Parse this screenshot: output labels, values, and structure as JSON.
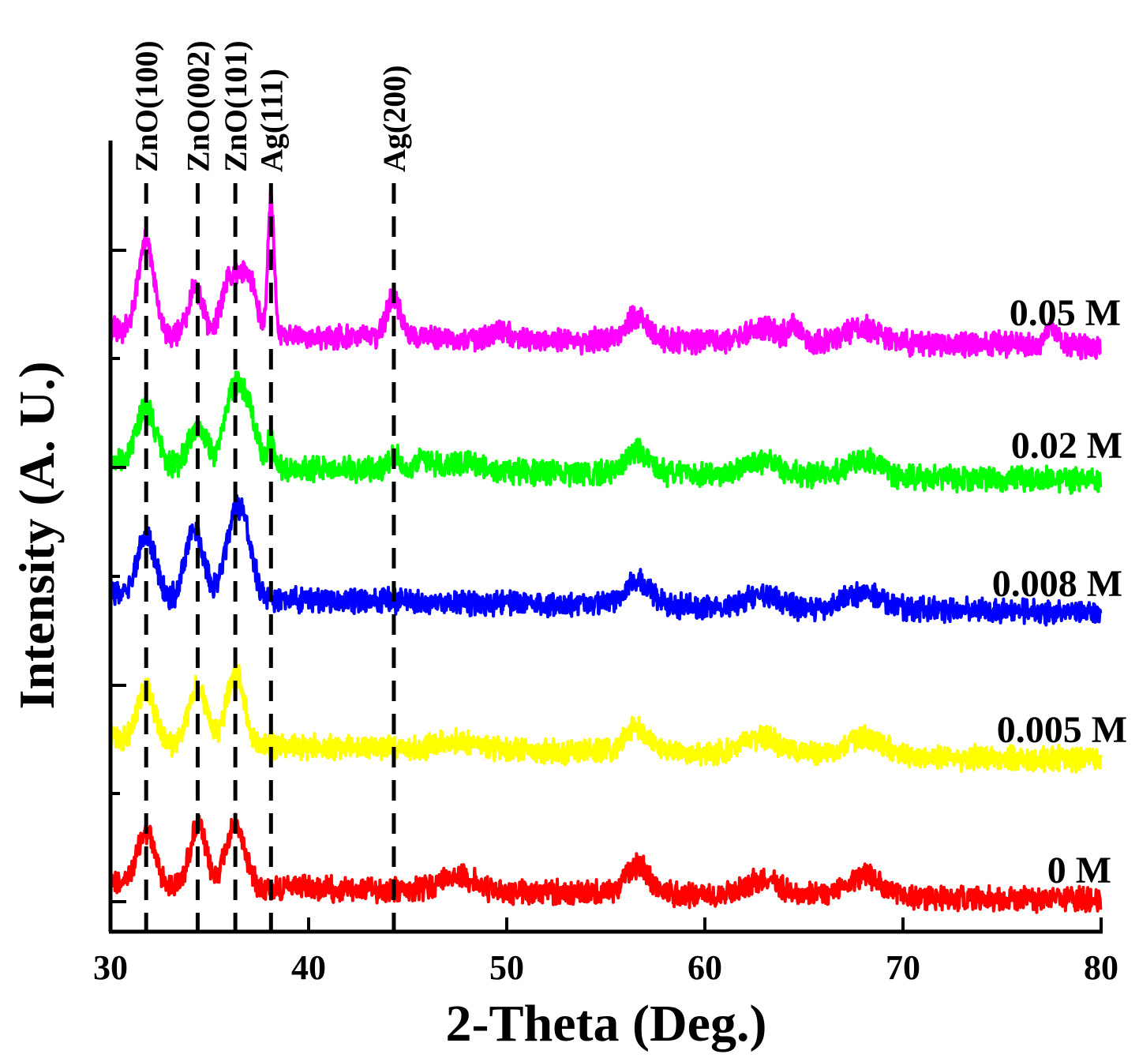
{
  "chart_data": {
    "type": "line",
    "title": "",
    "xlabel": "2-Theta (Deg.)",
    "ylabel": "Intensity (A. U.)",
    "xlim": [
      30,
      80
    ],
    "xticks": [
      30,
      40,
      50,
      60,
      70,
      80
    ],
    "grid": false,
    "peak_markers": [
      {
        "label": "ZnO(100)",
        "x": 31.8
      },
      {
        "label": "ZnO(002)",
        "x": 34.4
      },
      {
        "label": "ZnO(101)",
        "x": 36.3
      },
      {
        "label": "Ag(111)",
        "x": 38.1
      },
      {
        "label": "Ag(200)",
        "x": 44.3
      }
    ],
    "series": [
      {
        "name": "0 M",
        "color": "#ff0000",
        "peaks": [
          [
            31.8,
            1.0,
            0.45
          ],
          [
            34.4,
            1.15,
            0.4
          ],
          [
            36.3,
            1.15,
            0.5
          ],
          [
            47.5,
            0.3,
            0.8
          ],
          [
            56.6,
            0.5,
            0.6
          ],
          [
            62.9,
            0.3,
            0.9
          ],
          [
            68.0,
            0.38,
            0.9
          ]
        ]
      },
      {
        "name": "0.005 M",
        "color": "#ffff00",
        "peaks": [
          [
            31.8,
            1.0,
            0.45
          ],
          [
            34.4,
            1.05,
            0.45
          ],
          [
            36.3,
            1.35,
            0.45
          ],
          [
            47.5,
            0.15,
            0.8
          ],
          [
            56.6,
            0.45,
            0.6
          ],
          [
            62.9,
            0.3,
            0.9
          ],
          [
            68.0,
            0.35,
            0.9
          ]
        ]
      },
      {
        "name": "0.008 M",
        "color": "#0000ff",
        "peaks": [
          [
            31.8,
            1.15,
            0.45
          ],
          [
            34.0,
            0.8,
            0.35
          ],
          [
            34.5,
            0.8,
            0.35
          ],
          [
            36.3,
            1.45,
            0.5
          ],
          [
            36.9,
            0.6,
            0.4
          ],
          [
            56.6,
            0.45,
            0.6
          ],
          [
            62.9,
            0.2,
            0.9
          ],
          [
            68.0,
            0.3,
            0.9
          ]
        ]
      },
      {
        "name": "0.02 M",
        "color": "#00ff00",
        "peaks": [
          [
            31.8,
            1.05,
            0.5
          ],
          [
            34.4,
            0.75,
            0.45
          ],
          [
            36.2,
            1.4,
            0.45
          ],
          [
            37.0,
            0.95,
            0.4
          ],
          [
            38.1,
            0.5,
            0.18
          ],
          [
            44.3,
            0.25,
            0.3
          ],
          [
            45.9,
            0.2,
            0.4
          ],
          [
            47.8,
            0.15,
            0.8
          ],
          [
            56.6,
            0.4,
            0.6
          ],
          [
            62.9,
            0.25,
            0.9
          ],
          [
            68.0,
            0.3,
            0.9
          ]
        ]
      },
      {
        "name": "0.05 M",
        "color": "#ff00ff",
        "peaks": [
          [
            31.8,
            1.75,
            0.4
          ],
          [
            34.3,
            0.9,
            0.35
          ],
          [
            36.1,
            1.1,
            0.45
          ],
          [
            37.0,
            0.95,
            0.4
          ],
          [
            38.1,
            2.55,
            0.16
          ],
          [
            44.3,
            0.75,
            0.35
          ],
          [
            49.6,
            0.15,
            0.4
          ],
          [
            56.6,
            0.45,
            0.6
          ],
          [
            62.9,
            0.25,
            0.9
          ],
          [
            64.5,
            0.25,
            0.3
          ],
          [
            68.0,
            0.28,
            0.9
          ],
          [
            77.5,
            0.35,
            0.3
          ]
        ]
      }
    ]
  }
}
